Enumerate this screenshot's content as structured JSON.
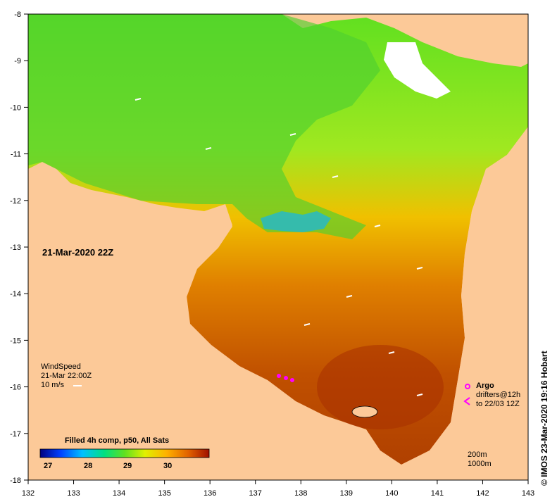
{
  "map": {
    "date_label": "21-Mar-2020 22Z",
    "x_ticks": [
      "132",
      "133",
      "134",
      "135",
      "136",
      "137",
      "138",
      "139",
      "140",
      "141",
      "142",
      "143"
    ],
    "y_ticks": [
      "-8",
      "-9",
      "-10",
      "-11",
      "-12",
      "-13",
      "-14",
      "-15",
      "-16",
      "-17",
      "-18"
    ],
    "wind": {
      "title": "WindSpeed",
      "time": "21-Mar 22:00Z",
      "scale_text": "10 m/s"
    },
    "colorbar": {
      "title": "Filled 4h comp, p50, All Sats",
      "ticks": [
        "27",
        "28",
        "29",
        "30"
      ],
      "colors": [
        "#000080",
        "#0040ff",
        "#00c0ff",
        "#00e080",
        "#60e020",
        "#e0f000",
        "#ffb000",
        "#e06000",
        "#a01000"
      ]
    },
    "argo": {
      "title": "Argo",
      "line1": "drifters@12h",
      "line2": "to 22/03 12Z",
      "symbol_color": "#ff00ff"
    },
    "scale": {
      "line1": "200m",
      "line2": "1000m"
    },
    "credit": "© IMOS 23-Mar-2020 19:16 Hobart",
    "land_color": "#fcc998"
  }
}
